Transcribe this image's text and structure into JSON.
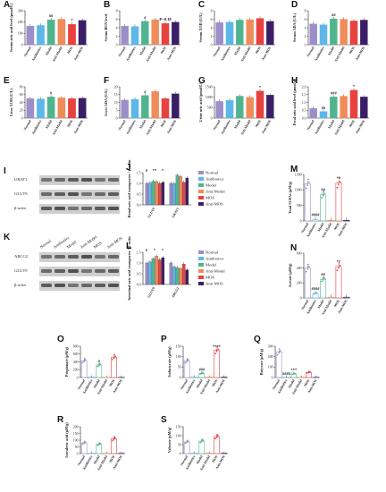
{
  "colors": {
    "Normal": "#9b8ec9",
    "Antibiotics": "#5db7e8",
    "Model": "#4fb48f",
    "Anti-Model": "#f08c5a",
    "MOS": "#e8423f",
    "Anti-MOS": "#3b1f66"
  },
  "groups": [
    "Normal",
    "Antibiotics",
    "Model",
    "Anti-Model",
    "MOS",
    "Anti-MOS"
  ],
  "blots": [
    {
      "id": "I",
      "label": "I",
      "headers": [],
      "rows": [
        "URAT1",
        "GLUT9",
        "β-actin"
      ]
    },
    {
      "id": "K",
      "label": "K",
      "headers": [
        "Normal",
        "Antibiotics",
        "Model",
        "Anti-Model",
        "MOS",
        "Anti-MOS"
      ],
      "rows": [
        "ABCG2",
        "GLUT9",
        "β-actin"
      ]
    }
  ],
  "chart_data": [
    {
      "id": "A",
      "label": "A",
      "type": "bar",
      "ylabel": "Serum uric acid level (μmol/L)",
      "ylim": [
        0,
        300
      ],
      "yticks": [
        "0",
        "100",
        "200",
        "300"
      ],
      "categories": [
        "Normal",
        "Antibiotics",
        "Model",
        "Anti-Model",
        "MOS",
        "Anti-MOS"
      ],
      "values": [
        165,
        170,
        220,
        225,
        180,
        215
      ],
      "sig": [
        "",
        "",
        "##",
        "",
        "*",
        ""
      ]
    },
    {
      "id": "B",
      "label": "B",
      "type": "bar",
      "ylabel": "Serum BUN level",
      "ylim": [
        0,
        8
      ],
      "yticks": [
        "0",
        "2",
        "4",
        "6",
        "8"
      ],
      "categories": [
        "Normal",
        "Antibiotics",
        "Model",
        "Anti-Model",
        "MOS",
        "Anti-MOS"
      ],
      "values": [
        4.4,
        4.3,
        5.5,
        5.9,
        5.0,
        5.3
      ],
      "sig": [
        "",
        "",
        "#",
        "",
        "P=0.18",
        ""
      ]
    },
    {
      "id": "C",
      "label": "C",
      "type": "bar",
      "ylabel": "Serum XOD (U/L)",
      "ylim": [
        0,
        8
      ],
      "yticks": [
        "0",
        "2",
        "4",
        "6",
        "8"
      ],
      "categories": [
        "Normal",
        "Antibiotics",
        "Model",
        "Anti-Model",
        "MOS",
        "Anti-MOS"
      ],
      "values": [
        5.2,
        5.3,
        5.8,
        5.9,
        6.2,
        5.5
      ],
      "sig": [
        "",
        "",
        "",
        "",
        "",
        ""
      ]
    },
    {
      "id": "D",
      "label": "D",
      "type": "bar",
      "ylabel": "Serum ADA (U/L)",
      "ylim": [
        0,
        8
      ],
      "yticks": [
        "0",
        "2",
        "4",
        "6",
        "8"
      ],
      "categories": [
        "Normal",
        "Antibiotics",
        "Model",
        "Anti-Model",
        "MOS",
        "Anti-MOS"
      ],
      "values": [
        4.9,
        4.7,
        6.1,
        6.0,
        5.6,
        5.8
      ],
      "sig": [
        "",
        "",
        "##",
        "",
        "",
        ""
      ]
    },
    {
      "id": "E",
      "label": "E",
      "type": "bar",
      "ylabel": "Liver XOD (U/L)",
      "ylim": [
        0,
        80
      ],
      "yticks": [
        "0",
        "20",
        "40",
        "60",
        "80"
      ],
      "categories": [
        "Normal",
        "Antibiotics",
        "Model",
        "Anti-Model",
        "MOS",
        "Anti-MOS"
      ],
      "values": [
        50,
        49,
        54,
        52,
        50,
        51
      ],
      "sig": [
        "",
        "",
        "#",
        "",
        "",
        ""
      ]
    },
    {
      "id": "F",
      "label": "F",
      "type": "bar",
      "ylabel": "Liver ADA (U/L)",
      "ylim": [
        0,
        20
      ],
      "yticks": [
        "0",
        "5",
        "10",
        "15",
        "20"
      ],
      "categories": [
        "Normal",
        "Antibiotics",
        "Model",
        "Anti-Model",
        "MOS",
        "Anti-MOS"
      ],
      "values": [
        11.5,
        12,
        14.5,
        17,
        12.5,
        15.5
      ],
      "sig": [
        "",
        "",
        "#",
        "",
        "",
        ""
      ]
    },
    {
      "id": "G",
      "label": "G",
      "type": "bar",
      "ylabel": "Urine uric acid (μmol/L)",
      "ylim": [
        0,
        1500
      ],
      "yticks": [
        "0",
        "500",
        "1000",
        "1500"
      ],
      "categories": [
        "Normal",
        "Antibiotics",
        "Model",
        "Anti-Model",
        "MOS",
        "Anti-MOS"
      ],
      "values": [
        800,
        850,
        1050,
        1000,
        1300,
        1100
      ],
      "sig": [
        "",
        "",
        "",
        "",
        "*",
        ""
      ]
    },
    {
      "id": "H",
      "label": "H",
      "type": "bar",
      "ylabel": "Fecal uric acid level (μmol/g)",
      "ylim": [
        0,
        2.0
      ],
      "yticks": [
        "0.0",
        "0.5",
        "1.0",
        "1.5",
        "2.0"
      ],
      "categories": [
        "Normal",
        "Antibiotics",
        "Model",
        "Anti-Model",
        "MOS",
        "Anti-MOS"
      ],
      "values": [
        0.62,
        0.42,
        1.35,
        1.4,
        1.78,
        1.35
      ],
      "sig": [
        "",
        "##",
        "###",
        "",
        "*",
        ""
      ]
    },
    {
      "id": "J",
      "label": "J",
      "type": "bar",
      "ylabel": "Renal uric acid transporter / β-actin",
      "ylim": [
        0,
        1.5
      ],
      "yticks": [
        "0.0",
        "0.5",
        "1.0",
        "1.5"
      ],
      "categories": [
        "GLUT9",
        "URAT1"
      ],
      "series": [
        {
          "name": "Normal",
          "values": [
            1.0,
            1.0
          ]
        },
        {
          "name": "Antibiotics",
          "values": [
            1.02,
            1.0
          ]
        },
        {
          "name": "Model",
          "values": [
            1.1,
            1.38
          ]
        },
        {
          "name": "Anti-Model",
          "values": [
            1.08,
            1.32
          ]
        },
        {
          "name": "MOS",
          "values": [
            1.0,
            1.05
          ]
        },
        {
          "name": "Anti-MOS",
          "values": [
            1.05,
            1.25
          ]
        }
      ],
      "sig": [
        "#",
        "**",
        "*",
        "",
        ""
      ]
    },
    {
      "id": "L",
      "label": "L",
      "type": "bar",
      "ylabel": "Intestinal uric acid transporter / β-actin",
      "ylim": [
        0,
        1.5
      ],
      "yticks": [
        "0.0",
        "0.5",
        "1.0",
        "1.5"
      ],
      "categories": [
        "GLUT9",
        "ABCG2"
      ],
      "series": [
        {
          "name": "Normal",
          "values": [
            1.0,
            1.0
          ]
        },
        {
          "name": "Antibiotics",
          "values": [
            1.05,
            0.82
          ]
        },
        {
          "name": "Model",
          "values": [
            1.2,
            0.78
          ]
        },
        {
          "name": "Anti-Model",
          "values": [
            1.32,
            0.74
          ]
        },
        {
          "name": "MOS",
          "values": [
            1.15,
            0.95
          ]
        },
        {
          "name": "Anti-MOS",
          "values": [
            1.25,
            0.68
          ]
        }
      ],
      "sig": [
        "#",
        "*",
        "*",
        "",
        ""
      ]
    },
    {
      "id": "M",
      "label": "M",
      "type": "bar",
      "ylabel": "Total SCFAs (μM/g)",
      "ylim": [
        0,
        1500
      ],
      "yticks": [
        "0",
        "500",
        "1000",
        "1500"
      ],
      "categories": [
        "Normal",
        "Antibiotics",
        "Model",
        "Anti-Model",
        "MOS",
        "Anti-MOS"
      ],
      "values": [
        1200,
        40,
        850,
        20,
        1220,
        20
      ],
      "sig": [
        "",
        "####",
        "##",
        "",
        "**",
        ""
      ]
    },
    {
      "id": "N",
      "label": "N",
      "type": "bar",
      "ylabel": "Acetate (μM/g)",
      "ylim": [
        0,
        600
      ],
      "yticks": [
        "0",
        "200",
        "400",
        "600"
      ],
      "categories": [
        "Normal",
        "Antibiotics",
        "Model",
        "Anti-Model",
        "MOS",
        "Anti-MOS"
      ],
      "values": [
        400,
        60,
        250,
        10,
        420,
        10
      ],
      "sig": [
        "",
        "####",
        "##",
        "",
        "**",
        ""
      ]
    },
    {
      "id": "O",
      "label": "O",
      "type": "bar",
      "ylabel": "Propionate (μM/g)",
      "ylim": [
        0,
        800
      ],
      "yticks": [
        "0",
        "200",
        "400",
        "600",
        "800"
      ],
      "categories": [
        "Normal",
        "Antibiotics",
        "Model",
        "Anti-Model",
        "MOS",
        "Anti-MOS"
      ],
      "values": [
        430,
        10,
        320,
        5,
        520,
        5
      ],
      "sig": [
        "",
        "",
        "#",
        "",
        "",
        ""
      ]
    },
    {
      "id": "P",
      "label": "P",
      "type": "bar",
      "ylabel": "Isobutyrate (μM/g)",
      "ylim": [
        0,
        150
      ],
      "yticks": [
        "0",
        "50",
        "100",
        "150"
      ],
      "categories": [
        "Normal",
        "Antibiotics",
        "Model",
        "Anti-Model",
        "MOS",
        "Anti-MOS"
      ],
      "values": [
        80,
        2,
        20,
        2,
        130,
        2
      ],
      "sig": [
        "",
        "",
        "###",
        "",
        "****",
        ""
      ]
    },
    {
      "id": "Q",
      "label": "Q",
      "type": "bar",
      "ylabel": "Butyrate (μM/g)",
      "ylim": [
        0,
        300
      ],
      "yticks": [
        "0",
        "100",
        "200",
        "300"
      ],
      "categories": [
        "Normal",
        "Antibiotics",
        "Model",
        "Anti-Model",
        "MOS",
        "Anti-MOS"
      ],
      "values": [
        245,
        2,
        35,
        2,
        50,
        2
      ],
      "sig": [
        "",
        "####",
        "***",
        "",
        "",
        ""
      ]
    },
    {
      "id": "R",
      "label": "R",
      "type": "bar",
      "ylabel": "Isovaleric acid (μM/g)",
      "ylim": [
        0,
        200
      ],
      "yticks": [
        "0",
        "50",
        "100",
        "150",
        "200"
      ],
      "categories": [
        "Normal",
        "Antibiotics",
        "Model",
        "Anti-Model",
        "MOS",
        "Anti-MOS"
      ],
      "values": [
        80,
        2,
        70,
        2,
        110,
        2
      ],
      "sig": [
        "",
        "",
        "",
        "",
        "",
        ""
      ]
    },
    {
      "id": "S",
      "label": "S",
      "type": "bar",
      "ylabel": "Valerate (μM/g)",
      "ylim": [
        0,
        150
      ],
      "yticks": [
        "0",
        "50",
        "100",
        "150"
      ],
      "categories": [
        "Normal",
        "Antibiotics",
        "Model",
        "Anti-Model",
        "MOS",
        "Anti-MOS"
      ],
      "values": [
        65,
        2,
        70,
        2,
        95,
        2
      ],
      "sig": [
        "",
        "",
        "",
        "",
        "",
        ""
      ]
    }
  ]
}
